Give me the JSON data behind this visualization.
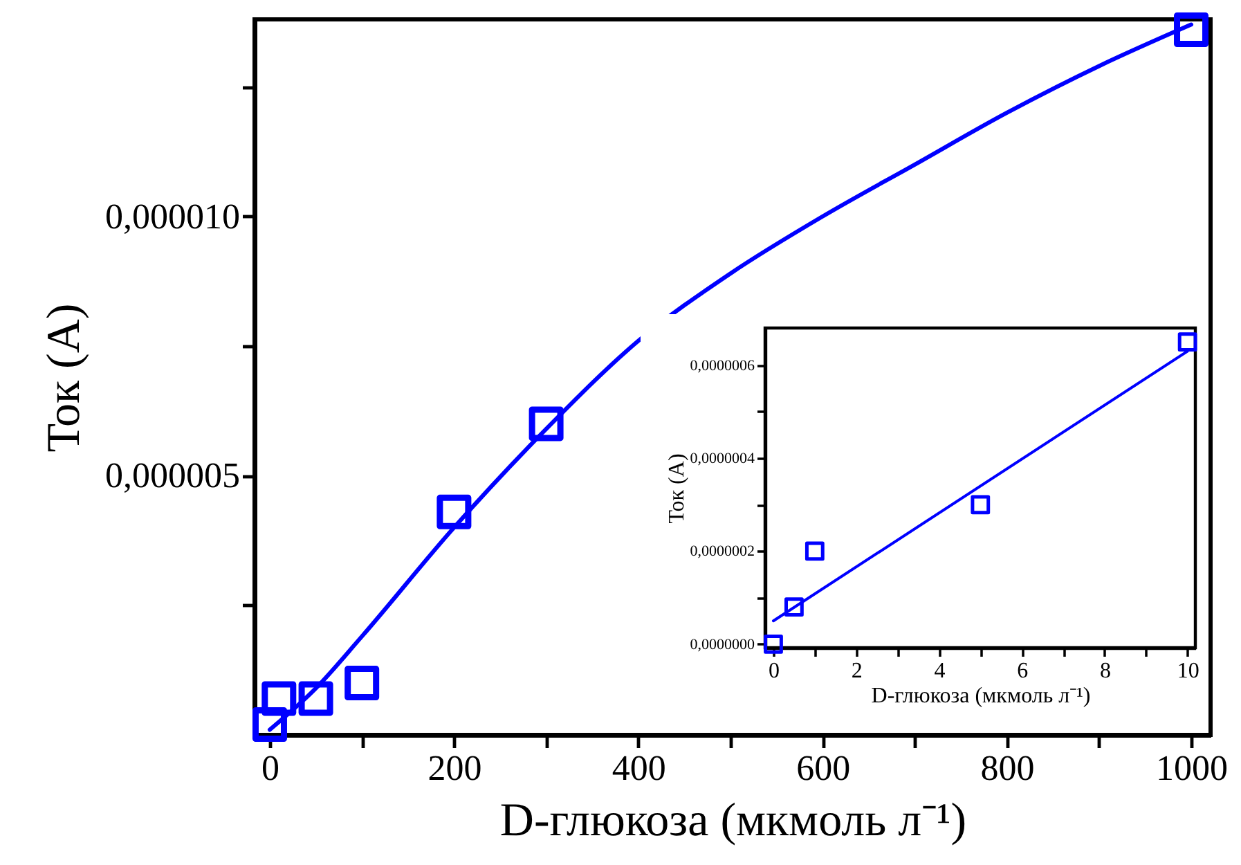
{
  "chart_data": [
    {
      "type": "scatter",
      "xlabel": "D-глюкоза (мкмоль л⁻¹)",
      "ylabel": "Ток (A)",
      "xlim": [
        -16.5,
        1021
      ],
      "ylim": [
        0,
        1.38e-05
      ],
      "xticks": [
        0,
        {
          "value": 100,
          "label": null
        },
        200,
        {
          "value": 300,
          "label": null
        },
        400,
        {
          "value": 500,
          "label": null
        },
        600,
        {
          "value": 700,
          "label": null
        },
        800,
        {
          "value": 900,
          "label": null
        },
        1000
      ],
      "yticks": [
        {
          "value": 2.5e-06,
          "label": null
        },
        {
          "value": 5e-06,
          "label": "0,000005"
        },
        {
          "value": 7.5e-06,
          "label": null
        },
        {
          "value": 1e-05,
          "label": "0,000010"
        },
        {
          "value": 1.25e-05,
          "label": null
        }
      ],
      "series": [
        {
          "marker": "square",
          "color": "#0000ff",
          "x": [
            0,
            10,
            50,
            100,
            200,
            300,
            1000
          ],
          "values": [
            2e-07,
            7e-07,
            7e-07,
            1e-06,
            4.3e-06,
            6e-06,
            1.36e-05
          ]
        },
        {
          "type": "line",
          "marker": "none",
          "color": "#0000ff",
          "x": [
            0,
            50,
            100,
            200,
            300,
            400,
            500,
            600,
            700,
            800,
            900,
            1000
          ],
          "values": [
            1e-07,
            9e-07,
            1.9e-06,
            4e-06,
            5.9e-06,
            7.6e-06,
            8.9e-06,
            1e-05,
            1.1e-05,
            1.2e-05,
            1.29e-05,
            1.37e-05
          ]
        }
      ]
    },
    {
      "type": "scatter",
      "xlabel": "D-глюкоза (мкмоль л⁻¹)",
      "ylabel": "Ток (A)",
      "xlim": [
        -0.2,
        10.19
      ],
      "ylim": [
        -7.7e-09,
        6.8e-07
      ],
      "xticks": [
        0,
        {
          "value": 1,
          "label": null
        },
        2,
        {
          "value": 3,
          "label": null
        },
        4,
        {
          "value": 5,
          "label": null
        },
        6,
        {
          "value": 7,
          "label": null
        },
        8,
        {
          "value": 9,
          "label": null
        },
        10
      ],
      "yticks": [
        {
          "value": 0,
          "label": "0,0000000"
        },
        {
          "value": 1e-07,
          "label": null
        },
        {
          "value": 2e-07,
          "label": "0,0000002"
        },
        {
          "value": 3e-07,
          "label": null
        },
        {
          "value": 4e-07,
          "label": "0,0000004"
        },
        {
          "value": 5e-07,
          "label": null
        },
        {
          "value": 6e-07,
          "label": "0,0000006"
        }
      ],
      "series": [
        {
          "marker": "square",
          "color": "#0000ff",
          "x": [
            0,
            0.5,
            1,
            5,
            10
          ],
          "values": [
            0,
            8e-08,
            2e-07,
            3e-07,
            6.5e-07
          ]
        },
        {
          "type": "line",
          "marker": "none",
          "color": "#0000ff",
          "x": [
            0,
            10
          ],
          "values": [
            5e-08,
            6.3e-07
          ]
        }
      ]
    }
  ]
}
